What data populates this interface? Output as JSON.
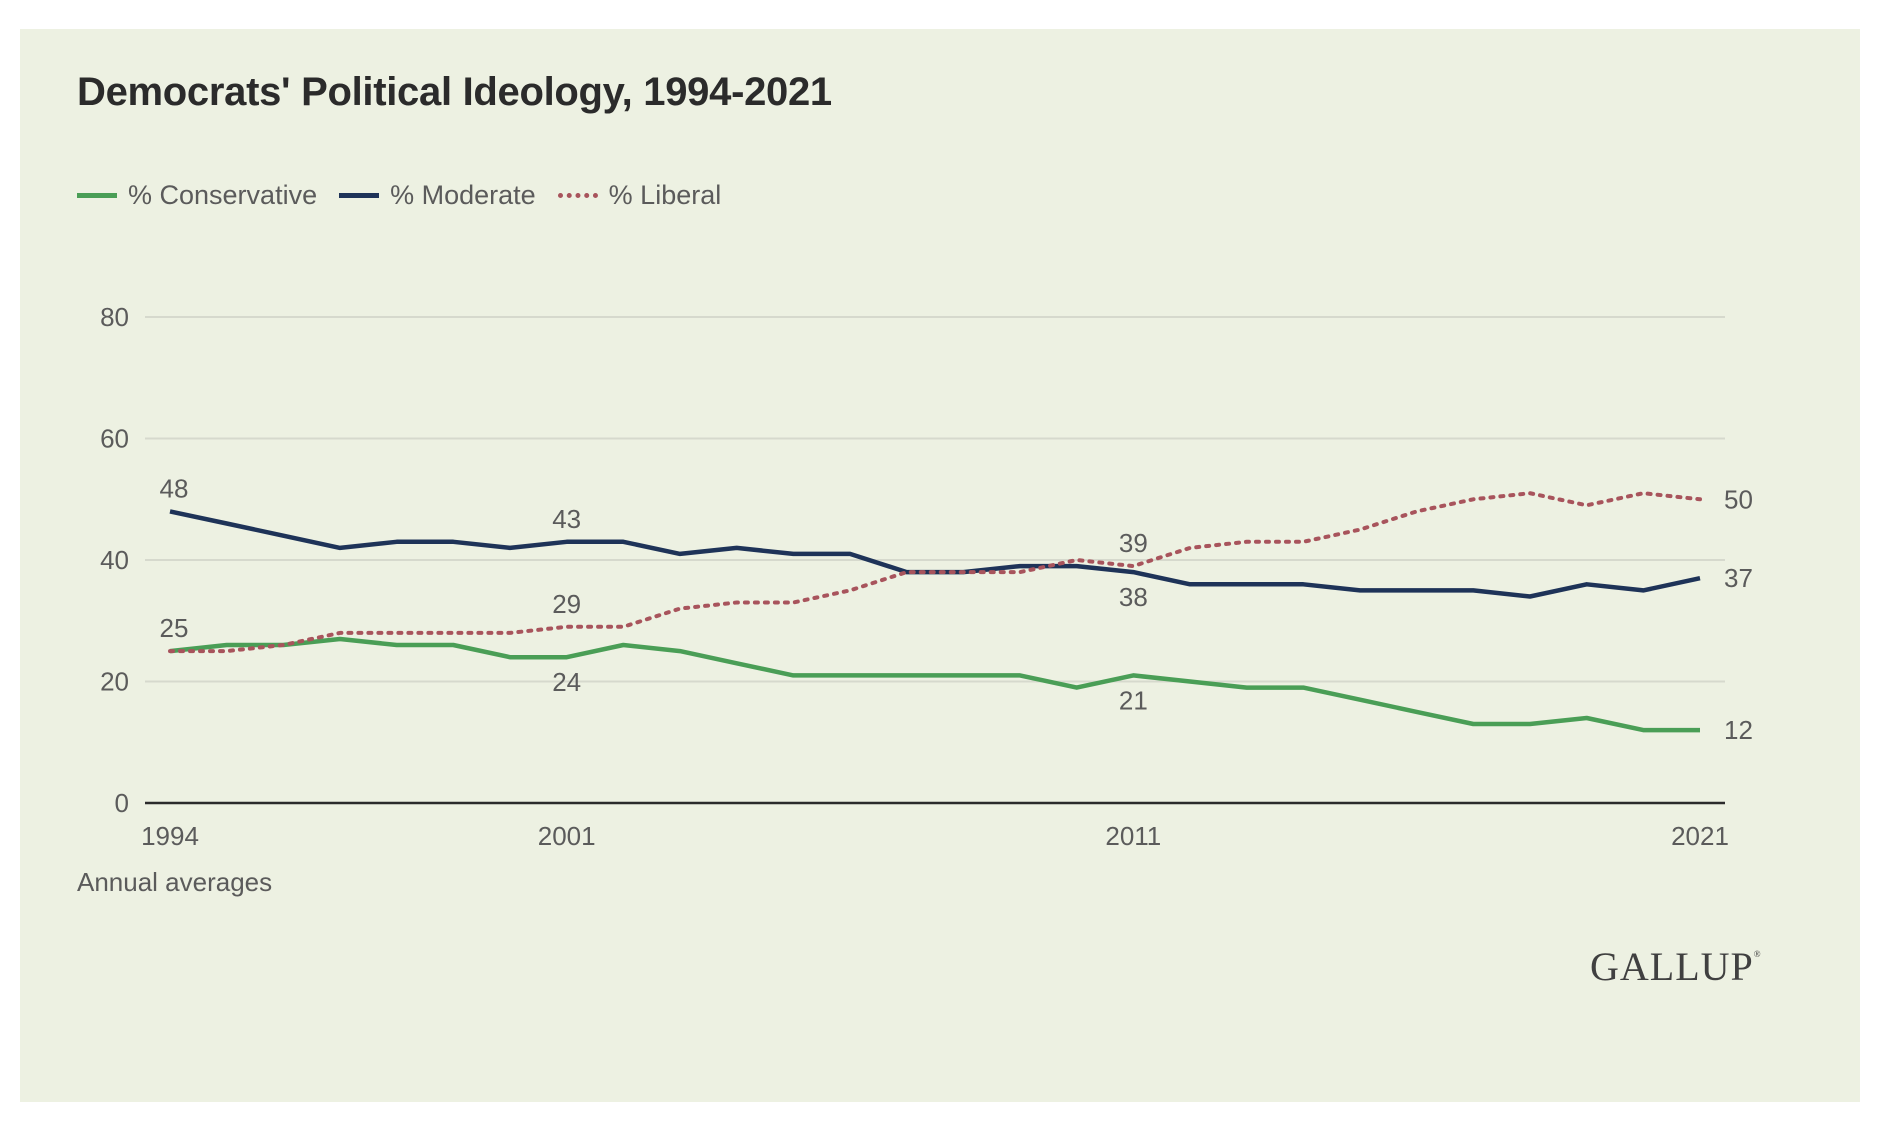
{
  "logo_text": "GALLUP",
  "colors": {
    "background": "#edf1e2",
    "conservative": "#4a9e56",
    "moderate": "#1e3358",
    "liberal": "#a8545c",
    "grid": "#d6d9cd",
    "axis": "#2b2b2b"
  },
  "chart_data": {
    "type": "line",
    "title": "Democrats' Political Ideology, 1994-2021",
    "note": "Annual averages",
    "xlabel": "",
    "ylabel": "",
    "ylim": [
      0,
      80
    ],
    "xlim": [
      1994,
      2021
    ],
    "yticks": [
      0,
      20,
      40,
      60,
      80
    ],
    "xticks": [
      "1994",
      "2001",
      "2011",
      "2021"
    ],
    "grid": true,
    "legend_position": "top-left",
    "x": [
      1994,
      1995,
      1996,
      1997,
      1998,
      1999,
      2000,
      2001,
      2002,
      2003,
      2004,
      2005,
      2006,
      2007,
      2008,
      2009,
      2010,
      2011,
      2012,
      2013,
      2014,
      2015,
      2016,
      2017,
      2018,
      2019,
      2020,
      2021
    ],
    "series": [
      {
        "name": "% Conservative",
        "key": "conservative",
        "style": "solid",
        "values": [
          25,
          26,
          26,
          27,
          26,
          26,
          24,
          24,
          26,
          25,
          23,
          21,
          21,
          21,
          21,
          21,
          19,
          21,
          20,
          19,
          19,
          17,
          15,
          13,
          13,
          14,
          12,
          12
        ],
        "data_labels": [
          {
            "x": 1994,
            "text": "25",
            "pos": "above"
          },
          {
            "x": 2001,
            "text": "24",
            "pos": "below"
          },
          {
            "x": 2011,
            "text": "21",
            "pos": "below"
          },
          {
            "x": 2021,
            "text": "12",
            "pos": "right"
          }
        ]
      },
      {
        "name": "% Moderate",
        "key": "moderate",
        "style": "solid",
        "values": [
          48,
          46,
          44,
          42,
          43,
          43,
          42,
          43,
          43,
          41,
          42,
          41,
          41,
          38,
          38,
          39,
          39,
          38,
          36,
          36,
          36,
          35,
          35,
          35,
          34,
          36,
          35,
          37
        ],
        "data_labels": [
          {
            "x": 1994,
            "text": "48",
            "pos": "above"
          },
          {
            "x": 2001,
            "text": "43",
            "pos": "above"
          },
          {
            "x": 2011,
            "text": "38",
            "pos": "below"
          },
          {
            "x": 2021,
            "text": "37",
            "pos": "right"
          }
        ]
      },
      {
        "name": "% Liberal",
        "key": "liberal",
        "style": "dotted",
        "values": [
          25,
          25,
          26,
          28,
          28,
          28,
          28,
          29,
          29,
          32,
          33,
          33,
          35,
          38,
          38,
          38,
          40,
          39,
          42,
          43,
          43,
          45,
          48,
          50,
          51,
          49,
          51,
          50
        ],
        "data_labels": [
          {
            "x": 2001,
            "text": "29",
            "pos": "above"
          },
          {
            "x": 2011,
            "text": "39",
            "pos": "above"
          },
          {
            "x": 2021,
            "text": "50",
            "pos": "right"
          }
        ]
      }
    ]
  }
}
